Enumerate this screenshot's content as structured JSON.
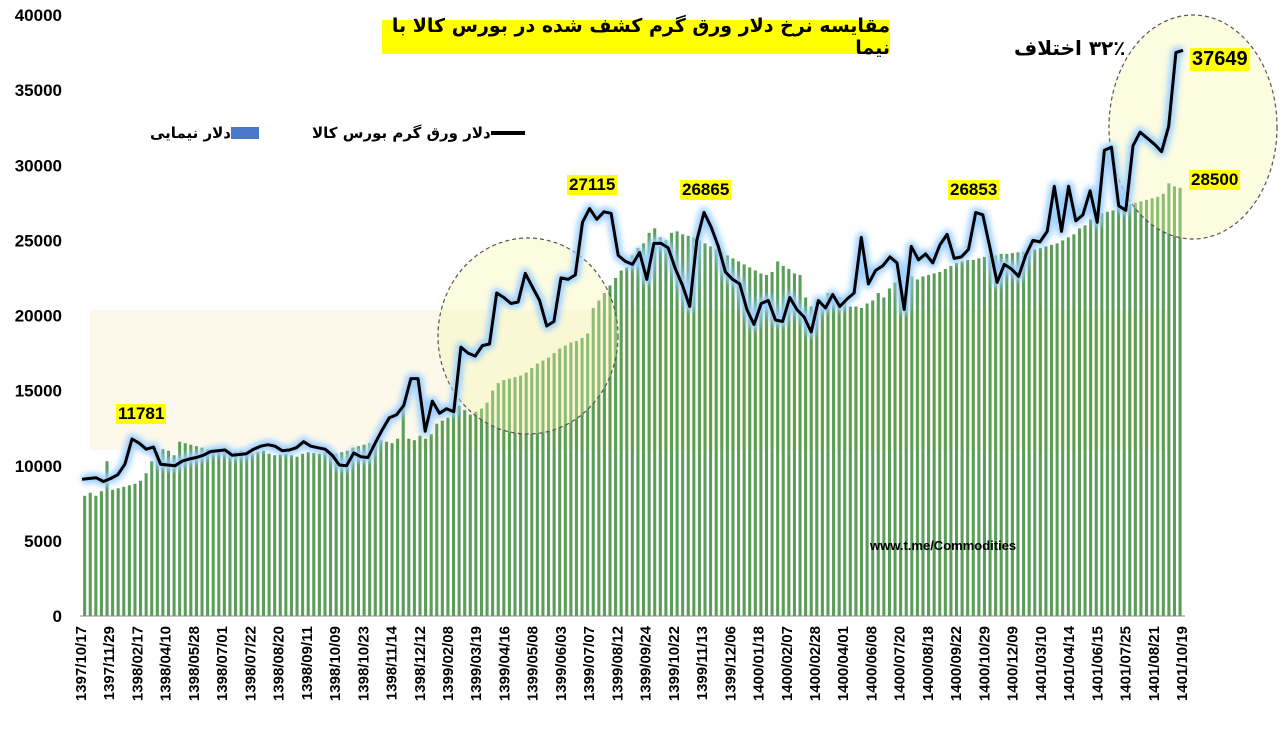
{
  "title": "مقایسه نرخ دلار ورق گرم کشف شده در بورس کالا با نیما",
  "annotation_diff": "۳۲٪ اختلاف",
  "watermark": "www.t.me/Commodities",
  "legend": {
    "bar_label": "دلار نیمایی",
    "line_label": "دلار ورق گرم بورس کالا"
  },
  "colors": {
    "bar": "#5a9e5a",
    "legend_bar": "#4a78c8",
    "line": "#000000",
    "line_glow": "#9fd0ff",
    "highlight": "#ffff00",
    "circle": "#f2f08a"
  },
  "data_labels": [
    {
      "text": "11781"
    },
    {
      "text": "27115"
    },
    {
      "text": "26865"
    },
    {
      "text": "26853"
    },
    {
      "text": "37649"
    },
    {
      "text": "28500"
    }
  ],
  "chart_data": {
    "type": "bar",
    "title": "مقایسه نرخ دلار ورق گرم کشف شده در بورس کالا با نیما",
    "xlabel": "",
    "ylabel": "",
    "ylim": [
      0,
      40000
    ],
    "yticks": [
      0,
      5000,
      10000,
      15000,
      20000,
      25000,
      30000,
      35000,
      40000
    ],
    "grid": false,
    "legend_position": "top-left",
    "x_tick_labels": [
      "1397/10/17",
      "1397/11/29",
      "1398/02/17",
      "1398/04/10",
      "1398/05/28",
      "1398/07/01",
      "1398/07/22",
      "1398/08/20",
      "1398/09/11",
      "1398/10/09",
      "1398/10/23",
      "1398/11/14",
      "1398/12/12",
      "1399/02/08",
      "1399/03/19",
      "1399/04/16",
      "1399/05/08",
      "1399/06/03",
      "1399/07/07",
      "1399/08/12",
      "1399/09/24",
      "1399/10/22",
      "1399/11/13",
      "1399/12/06",
      "1400/01/18",
      "1400/02/07",
      "1400/02/28",
      "1400/04/01",
      "1400/06/08",
      "1400/07/20",
      "1400/08/18",
      "1400/09/22",
      "1400/10/29",
      "1400/12/09",
      "1401/03/10",
      "1401/04/14",
      "1401/06/15",
      "1401/07/25",
      "1401/08/21",
      "1401/10/19"
    ],
    "series": [
      {
        "name": "دلار نیمایی",
        "type": "bar",
        "values": [
          8000,
          8200,
          8000,
          8300,
          10300,
          8400,
          8500,
          8600,
          8700,
          8800,
          9000,
          9500,
          10300,
          10900,
          11100,
          11000,
          10700,
          11600,
          11500,
          11400,
          11300,
          11200,
          11100,
          11000,
          11000,
          10900,
          11000,
          10950,
          11000,
          10900,
          10800,
          10900,
          11000,
          10800,
          10700,
          10750,
          10800,
          10700,
          10600,
          10800,
          10900,
          10850,
          10800,
          10900,
          10700,
          10800,
          10900,
          11000,
          11200,
          11300,
          11400,
          11500,
          11600,
          11700,
          11600,
          11500,
          11800,
          13900,
          11800,
          11700,
          12000,
          11800,
          12100,
          12800,
          13000,
          13200,
          13800,
          14000,
          13700,
          13400,
          13600,
          13800,
          14200,
          15000,
          15500,
          15700,
          15800,
          15900,
          16000,
          16200,
          16500,
          16800,
          17000,
          17200,
          17500,
          17800,
          18000,
          18200,
          18300,
          18500,
          18800,
          20500,
          21000,
          21500,
          22000,
          22500,
          23000,
          23200,
          24000,
          24500,
          24800,
          25500,
          25800,
          25200,
          25000,
          25500,
          25600,
          25400,
          25300,
          25200,
          25000,
          24800,
          24600,
          24400,
          24200,
          24000,
          23800,
          23600,
          23400,
          23200,
          23000,
          22800,
          22700,
          22900,
          23600,
          23300,
          23100,
          22800,
          22700,
          21200,
          20600,
          21000,
          20800,
          21500,
          21400,
          21200,
          21000,
          20600,
          20600,
          20500,
          20800,
          21000,
          21500,
          21200,
          21800,
          22200,
          22500,
          22700,
          22600,
          22400,
          22600,
          22700,
          22800,
          22900,
          23100,
          23300,
          23500,
          23600,
          23700,
          23700,
          23800,
          23900,
          24000,
          24000,
          24100,
          24100,
          24150,
          24200,
          24250,
          24300,
          24400,
          24500,
          24600,
          24700,
          24800,
          25000,
          25200,
          25400,
          25800,
          26000,
          26400,
          26600,
          26800,
          26900,
          27000,
          27200,
          27300,
          27400,
          27500,
          27600,
          27700,
          27800,
          27900,
          28100,
          28800,
          28600,
          28500
        ]
      },
      {
        "name": "دلار ورق گرم بورس کالا",
        "type": "line",
        "values": [
          9100,
          9150,
          9200,
          8950,
          9150,
          9400,
          10100,
          11781,
          11500,
          11100,
          11250,
          10100,
          10050,
          10000,
          10300,
          10450,
          10550,
          10700,
          10950,
          11000,
          11050,
          10700,
          10750,
          10800,
          11100,
          11300,
          11400,
          11300,
          11000,
          11050,
          11200,
          11600,
          11300,
          11200,
          11100,
          10700,
          10050,
          10000,
          10850,
          10600,
          10550,
          11500,
          12400,
          13200,
          13400,
          14000,
          15800,
          15800,
          12300,
          14300,
          13500,
          13800,
          13600,
          17900,
          17500,
          17300,
          18000,
          18100,
          21500,
          21200,
          20800,
          20900,
          22800,
          21900,
          21000,
          19300,
          19600,
          22500,
          22400,
          22700,
          26200,
          27115,
          26400,
          26900,
          26800,
          24000,
          23600,
          23400,
          24200,
          22400,
          24800,
          24800,
          24500,
          23100,
          22000,
          20600,
          25000,
          26865,
          25900,
          24600,
          22900,
          22400,
          22100,
          20400,
          19400,
          20800,
          21000,
          19700,
          19600,
          21200,
          20400,
          19900,
          18900,
          21000,
          20500,
          21400,
          20600,
          21100,
          21500,
          25200,
          22100,
          23000,
          23300,
          23900,
          23500,
          20400,
          24600,
          23700,
          24100,
          23500,
          24700,
          25400,
          23800,
          23900,
          24400,
          26853,
          26700,
          24500,
          22200,
          23400,
          23100,
          22600,
          24000,
          25000,
          24900,
          25600,
          28600,
          25600,
          28600,
          26300,
          26700,
          28300,
          26200,
          31000,
          31200,
          27300,
          27000,
          31300,
          32200,
          31800,
          31400,
          30900,
          32600,
          37500,
          37649
        ]
      }
    ]
  }
}
